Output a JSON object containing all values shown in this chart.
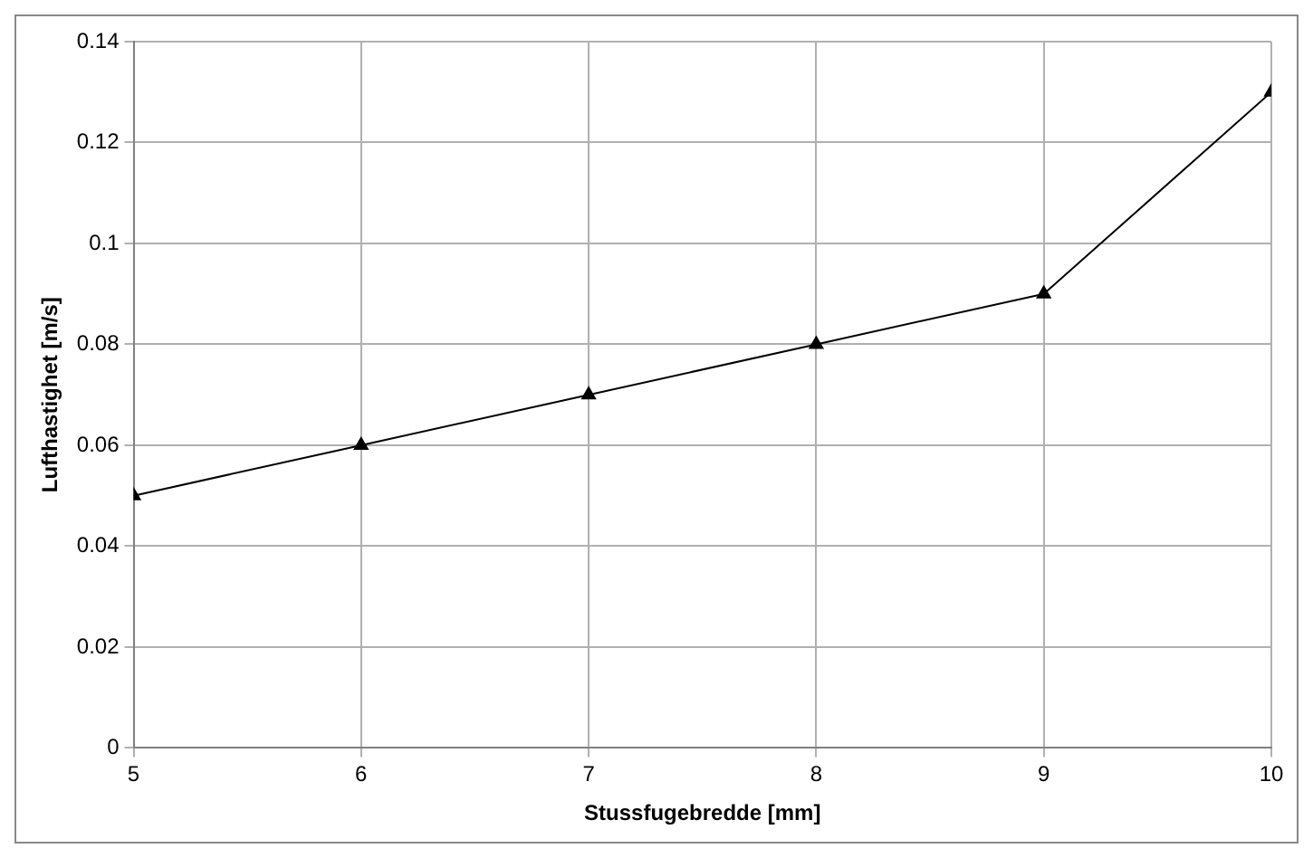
{
  "chart_data": {
    "type": "line",
    "xlabel": "Stussfugebredde [mm]",
    "ylabel": "Lufthastighet [m/s]",
    "x": [
      5,
      6,
      7,
      8,
      9,
      10
    ],
    "series": [
      {
        "color": "#000000",
        "values": [
          0.05,
          0.06,
          0.07,
          0.08,
          0.09,
          0.13
        ]
      }
    ],
    "xlim": [
      5,
      10
    ],
    "xticks": [
      5,
      6,
      7,
      8,
      9,
      10
    ],
    "ylim": [
      0,
      0.14
    ],
    "yticks": [
      0,
      0.02,
      0.04,
      0.06,
      0.08,
      0.1,
      0.12,
      0.14
    ],
    "grid": true,
    "legend": false,
    "marker": "triangle",
    "line_style": "solid"
  }
}
